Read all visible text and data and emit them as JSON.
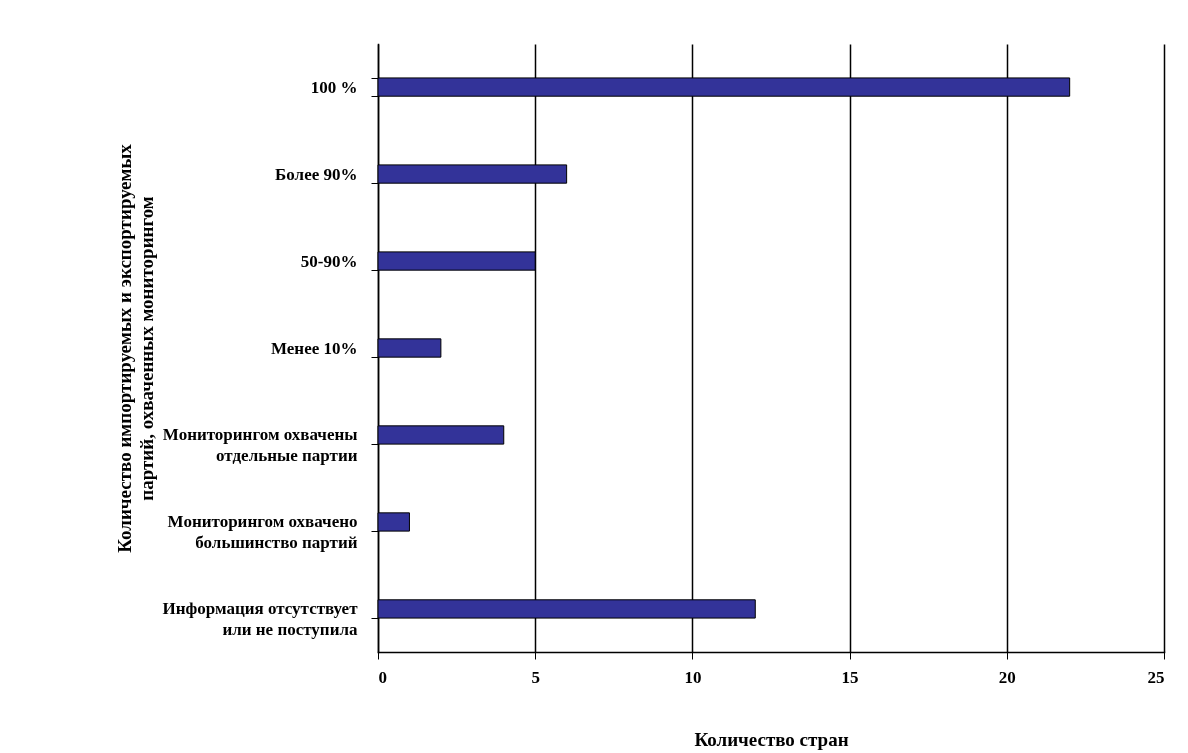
{
  "chart_data": {
    "type": "bar",
    "orientation": "horizontal",
    "categories": [
      "100 %",
      "Более 90%",
      "50-90%",
      "Менее 10%",
      "Мониторингом охвачены\nотдельные партии",
      "Мониторингом охвачено\nбольшинство партий",
      "Информация отсутствует\nили не поступила"
    ],
    "values": [
      22,
      6,
      5,
      2,
      4,
      1,
      12
    ],
    "color": "#333399",
    "xlabel": "Количество стран",
    "ylabel": "Количество импортируемых и экспортируемых\nпартий, охваченных мониторингом",
    "xlim": [
      0,
      25
    ],
    "xticks": [
      0,
      5,
      10,
      15,
      20,
      25
    ],
    "grid": "x"
  }
}
